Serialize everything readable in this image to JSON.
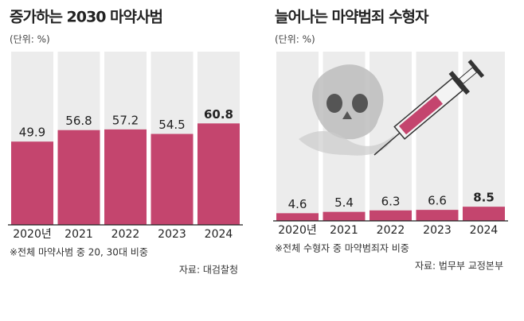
{
  "chart_data": [
    {
      "type": "bar",
      "title": "증가하는 2030 마약사범",
      "unit": "(단위: %)",
      "categories": [
        "2020년",
        "2021",
        "2022",
        "2023",
        "2024"
      ],
      "values": [
        49.9,
        56.8,
        57.2,
        54.5,
        60.8
      ],
      "color": "#c4456e",
      "note": "※전체 마약사범 중 20, 30대 비중",
      "source": "자료: 대검찰청"
    },
    {
      "type": "bar",
      "title": "늘어나는 마약범죄 수형자",
      "unit": "(단위: %)",
      "categories": [
        "2020년",
        "2021",
        "2022",
        "2023",
        "2024"
      ],
      "values": [
        4.6,
        5.4,
        6.3,
        6.6,
        8.5
      ],
      "color": "#c4456e",
      "note": "※전체 수형자 중 마약범죄자 비중",
      "source": "자료: 법무부 교정본부"
    }
  ]
}
